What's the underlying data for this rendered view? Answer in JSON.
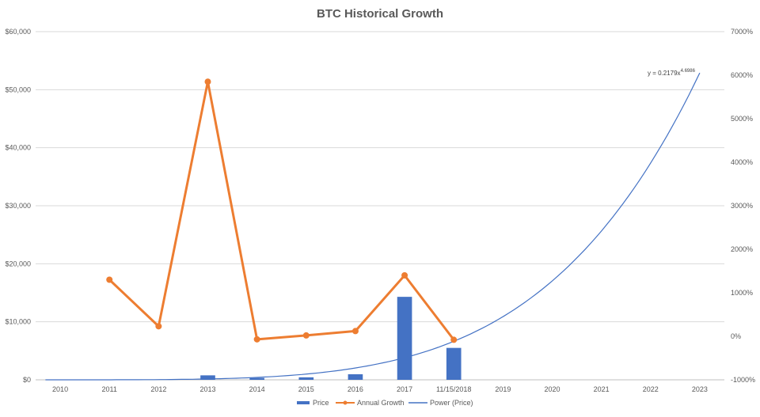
{
  "chart_data": {
    "type": "bar",
    "title": "BTC Historical Growth",
    "categories": [
      "2010",
      "2011",
      "2012",
      "2013",
      "2014",
      "2015",
      "2016",
      "2017",
      "11/15/2018",
      "2019",
      "2020",
      "2021",
      "2022",
      "2023"
    ],
    "y_left": {
      "min": 0,
      "max": 60000,
      "ticks": [
        "$0",
        "$10,000",
        "$20,000",
        "$30,000",
        "$40,000",
        "$50,000",
        "$60,000"
      ]
    },
    "y_right": {
      "min": -1000,
      "max": 7000,
      "ticks": [
        "-1000%",
        "0%",
        "1000%",
        "2000%",
        "3000%",
        "4000%",
        "5000%",
        "6000%",
        "7000%"
      ]
    },
    "grid": true,
    "legend_position": "bottom",
    "series": [
      {
        "name": "Price",
        "type": "bar",
        "axis": "left",
        "color": "#4472C4",
        "values": [
          0,
          0,
          13,
          770,
          320,
          430,
          960,
          14300,
          5500,
          null,
          null,
          null,
          null,
          null
        ]
      },
      {
        "name": "Annual Growth",
        "type": "line",
        "axis": "right",
        "color": "#ED7D31",
        "values": [
          null,
          1300,
          230,
          5850,
          -70,
          20,
          120,
          1400,
          -80,
          null,
          null,
          null,
          null,
          null
        ]
      },
      {
        "name": "Power (Price)",
        "type": "trendline",
        "axis": "left",
        "color": "#4472C4",
        "equation": "y = 0.2179x",
        "exponent": "4.6986",
        "coef": 0.2179,
        "power": 4.6986
      }
    ]
  }
}
